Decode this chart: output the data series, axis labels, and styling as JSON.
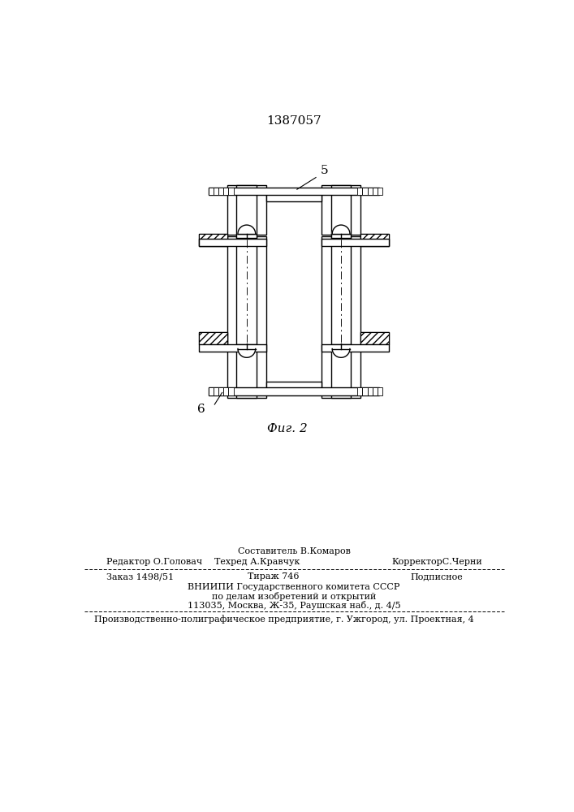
{
  "patent_number": "1387057",
  "fig_label": "Фиг. 2",
  "label_5": "5",
  "label_6": "6",
  "editor_line": "Редактор О.Головач",
  "composer_line": "Составитель В.Комаров",
  "techred_line": "Техред А.Кравчук",
  "corrector_line": "КорректорС.Черни",
  "order_line": "Заказ 1498/51",
  "tirage_line": "Тираж 746",
  "podpisnoe_line": "Подписное",
  "vnipi_line1": "ВНИИПИ Государственного комитета СССР",
  "vnipi_line2": "по делам изобретений и открытий",
  "vnipi_line3": "113035, Москва, Ж-35, Раушская наб., д. 4/5",
  "production_line": "Производственно-полиграфическое предприятие, г. Ужгород, ул. Проектная, 4",
  "bg_color": "#ffffff",
  "text_color": "#000000",
  "drawing_color": "#000000"
}
